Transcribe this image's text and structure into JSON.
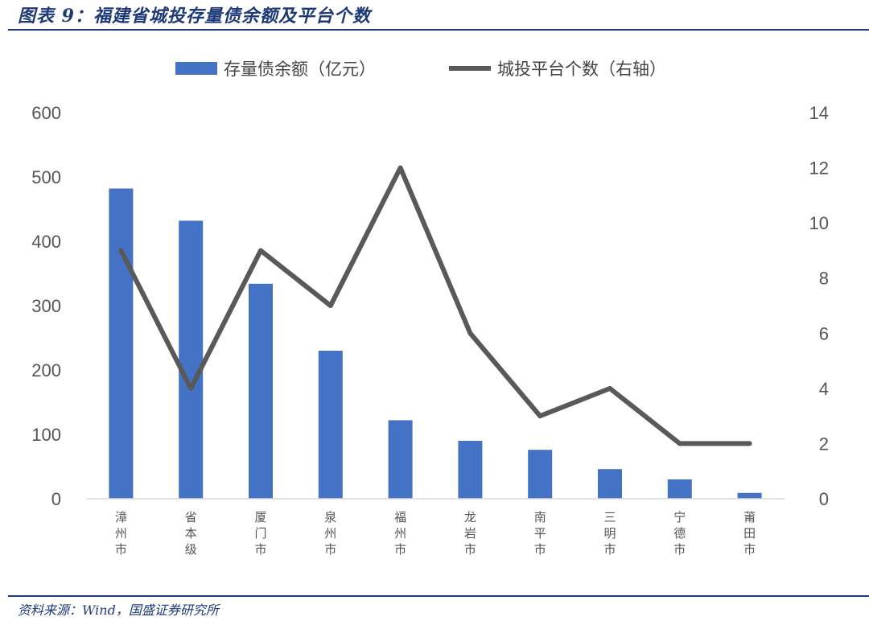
{
  "header": {
    "title": "图表 9：福建省城投存量债余额及平台个数"
  },
  "footer": {
    "source": "资料来源：Wind，国盛证券研究所"
  },
  "chart_data": {
    "type": "bar",
    "categories": [
      "漳州市",
      "省本级",
      "厦门市",
      "泉州市",
      "福州市",
      "龙岩市",
      "南平市",
      "三明市",
      "宁德市",
      "莆田市"
    ],
    "series": [
      {
        "name": "存量债余额（亿元）",
        "type": "bar",
        "axis": "left",
        "color": "#4472c4",
        "values": [
          482,
          432,
          334,
          230,
          122,
          90,
          76,
          46,
          30,
          9
        ]
      },
      {
        "name": "城投平台个数（右轴）",
        "type": "line",
        "axis": "right",
        "color": "#595959",
        "values": [
          9,
          4,
          9,
          7,
          12,
          6,
          3,
          4,
          2,
          2
        ]
      }
    ],
    "y_left": {
      "min": 0,
      "max": 600,
      "ticks": [
        0,
        100,
        200,
        300,
        400,
        500,
        600
      ]
    },
    "y_right": {
      "min": 0,
      "max": 14,
      "ticks": [
        0,
        2,
        4,
        6,
        8,
        10,
        12,
        14
      ]
    },
    "grid": false,
    "legend_position": "top-center"
  }
}
